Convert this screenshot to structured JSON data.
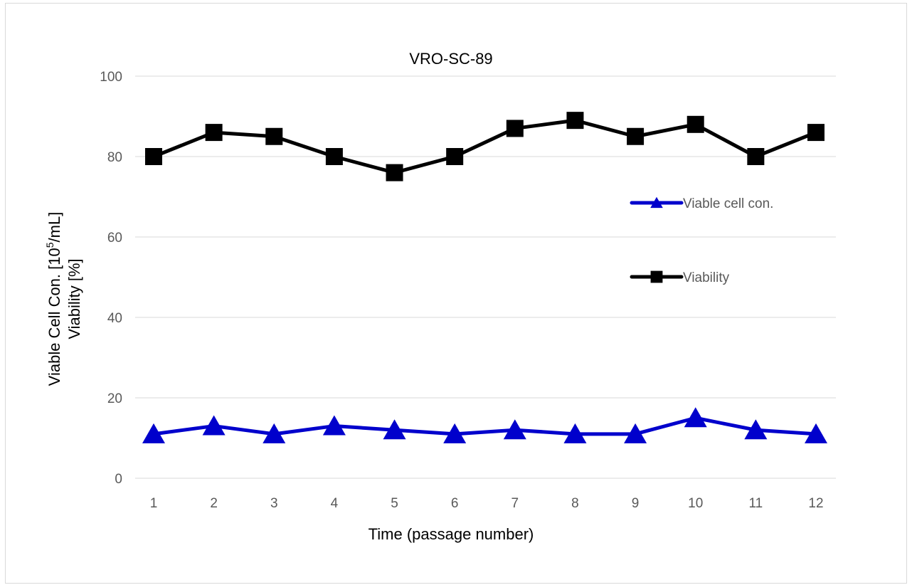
{
  "chart_data": {
    "type": "line",
    "title": "VRO-SC-89",
    "xlabel": "Time  (passage number)",
    "ylabel_lines": [
      {
        "base": "Viable Cell Con.  [10",
        "superscript": "5",
        "suffix": "/mL]"
      },
      {
        "base": "Viability  [%]",
        "superscript": "",
        "suffix": ""
      }
    ],
    "x": [
      1,
      2,
      3,
      4,
      5,
      6,
      7,
      8,
      9,
      10,
      11,
      12
    ],
    "x_tick_labels": [
      "1",
      "2",
      "3",
      "4",
      "5",
      "6",
      "7",
      "8",
      "9",
      "10",
      "11",
      "12"
    ],
    "ylim": [
      0,
      100
    ],
    "y_ticks": [
      0,
      20,
      40,
      60,
      80,
      100
    ],
    "y_tick_labels": [
      "0",
      "20",
      "40",
      "60",
      "80",
      "100"
    ],
    "grid": true,
    "legend_position": "right",
    "series": [
      {
        "name": "Viable cell con.",
        "color": "#0000cc",
        "marker": "triangle",
        "values": [
          11,
          13,
          11,
          13,
          12,
          11,
          12,
          11,
          11,
          15,
          12,
          11
        ]
      },
      {
        "name": "Viability",
        "color": "#000000",
        "marker": "square",
        "values": [
          80,
          86,
          85,
          80,
          76,
          80,
          87,
          89,
          85,
          88,
          80,
          86
        ]
      }
    ]
  }
}
